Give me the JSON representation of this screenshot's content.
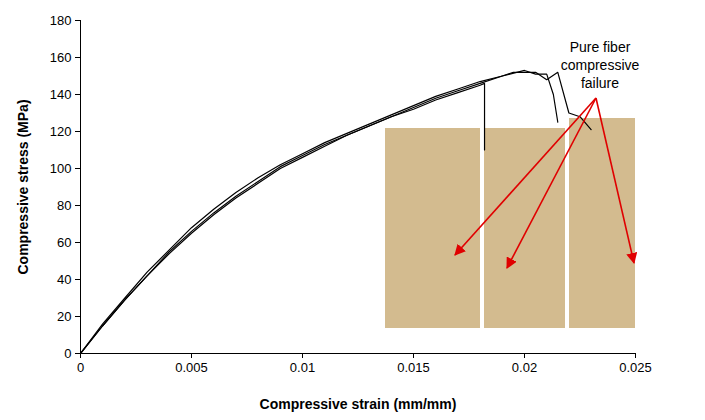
{
  "chart_data": {
    "type": "line",
    "xlabel": "Compressive strain (mm/mm)",
    "ylabel": "Compressive stress (MPa)",
    "xlim": [
      0,
      0.025
    ],
    "xticks": [
      0,
      0.005,
      0.01,
      0.015,
      0.02,
      0.025
    ],
    "ylim": [
      0,
      180
    ],
    "yticks": [
      0,
      20,
      40,
      60,
      80,
      100,
      120,
      140,
      160,
      180
    ],
    "grid": false,
    "annotation": "Pure fiber compressive failure",
    "series": [
      {
        "color": "#000000",
        "x": [
          0,
          0.001,
          0.002,
          0.003,
          0.004,
          0.005,
          0.006,
          0.007,
          0.008,
          0.009,
          0.01,
          0.011,
          0.012,
          0.013,
          0.014,
          0.015,
          0.016,
          0.017,
          0.018,
          0.0182,
          0.0182
        ],
        "values": [
          0,
          15,
          29,
          42,
          54,
          65,
          75,
          84,
          92,
          100,
          106,
          112,
          118,
          123,
          128,
          132,
          137,
          141,
          145,
          146,
          110
        ]
      },
      {
        "color": "#000000",
        "x": [
          0,
          0.001,
          0.002,
          0.003,
          0.004,
          0.005,
          0.006,
          0.007,
          0.008,
          0.009,
          0.01,
          0.011,
          0.012,
          0.013,
          0.014,
          0.015,
          0.016,
          0.017,
          0.018,
          0.019,
          0.02,
          0.0205,
          0.021,
          0.0213,
          0.0215
        ],
        "values": [
          0,
          16,
          30,
          44,
          56,
          68,
          78,
          87,
          95,
          102,
          108,
          114,
          119,
          124,
          129,
          134,
          139,
          143,
          147,
          150,
          153,
          151,
          151,
          140,
          125
        ]
      },
      {
        "color": "#000000",
        "x": [
          0,
          0.001,
          0.002,
          0.003,
          0.004,
          0.005,
          0.006,
          0.007,
          0.008,
          0.009,
          0.01,
          0.011,
          0.012,
          0.013,
          0.014,
          0.015,
          0.016,
          0.017,
          0.018,
          0.019,
          0.0195,
          0.0205,
          0.021,
          0.0215,
          0.022,
          0.0225,
          0.023
        ],
        "values": [
          0,
          15,
          29,
          42,
          55,
          66,
          76,
          85,
          93,
          101,
          107,
          113,
          118,
          123,
          128,
          133,
          138,
          142,
          146,
          150,
          152,
          152,
          148,
          152,
          130,
          128,
          121
        ]
      }
    ]
  }
}
